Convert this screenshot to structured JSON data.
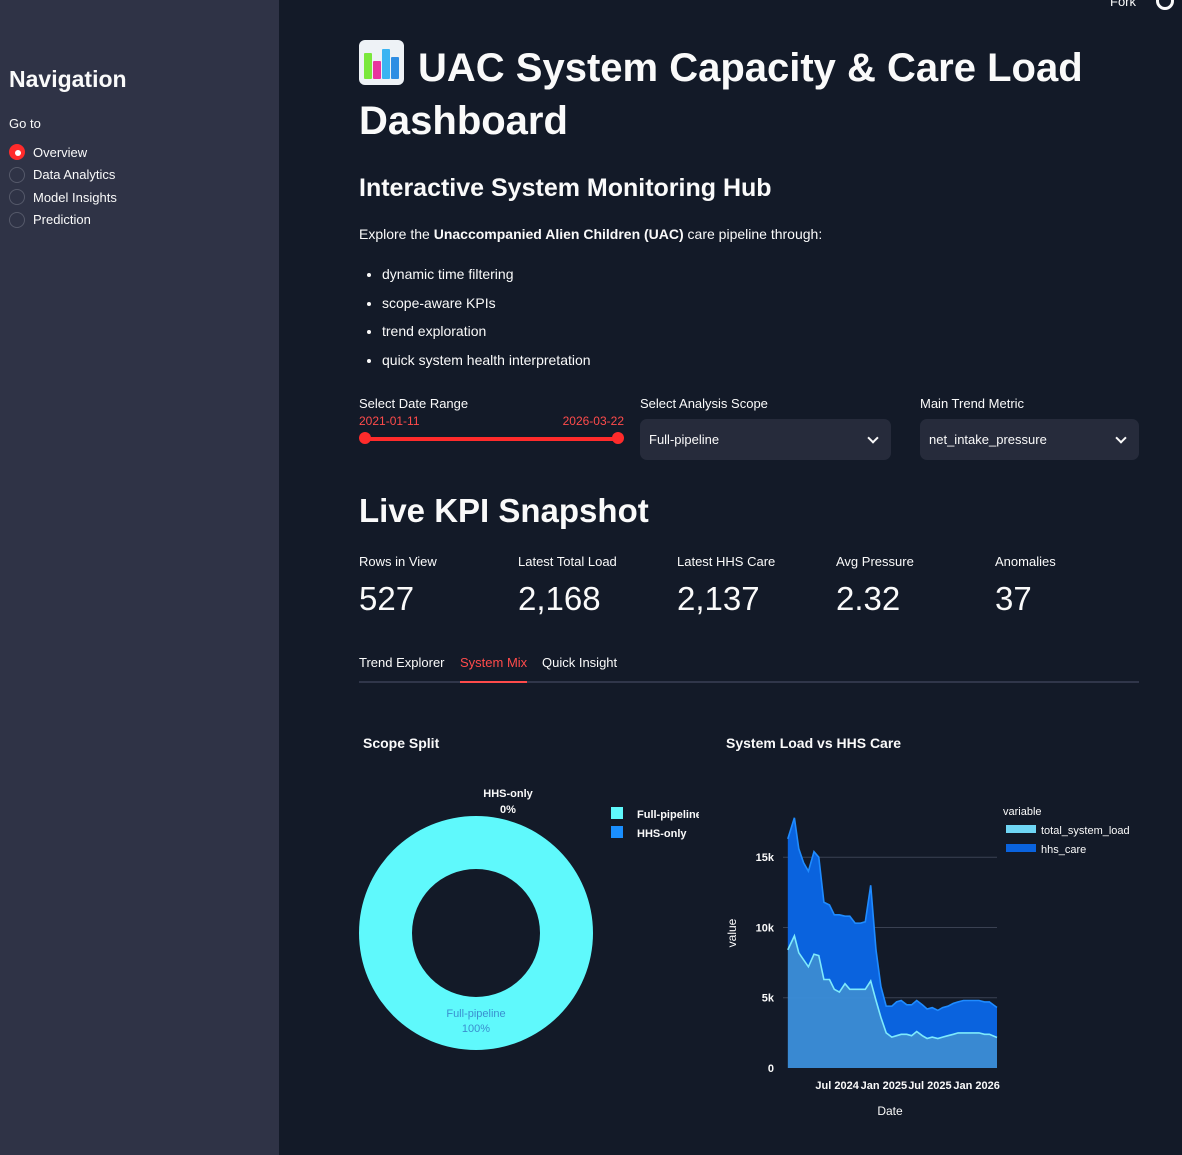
{
  "topbar": {
    "fork_label": "Fork"
  },
  "sidebar": {
    "title": "Navigation",
    "goto_label": "Go to",
    "items": [
      {
        "label": "Overview",
        "selected": true
      },
      {
        "label": "Data Analytics",
        "selected": false
      },
      {
        "label": "Model Insights",
        "selected": false
      },
      {
        "label": "Prediction",
        "selected": false
      }
    ]
  },
  "header": {
    "title": "UAC System Capacity & Care Load Dashboard",
    "subtitle": "Interactive System Monitoring Hub",
    "intro_prefix": "Explore the ",
    "intro_bold": "Unaccompanied Alien Children (UAC)",
    "intro_suffix": " care pipeline through:",
    "bullets": [
      "dynamic time filtering",
      "scope-aware KPIs",
      "trend exploration",
      "quick system health interpretation"
    ]
  },
  "controls": {
    "date_range": {
      "label": "Select Date Range",
      "start": "2021-01-11",
      "end": "2026-03-22"
    },
    "scope": {
      "label": "Select Analysis Scope",
      "value": "Full-pipeline"
    },
    "metric": {
      "label": "Main Trend Metric",
      "value": "net_intake_pressure"
    }
  },
  "kpi": {
    "title": "Live KPI Snapshot",
    "metrics": [
      {
        "label": "Rows in View",
        "value": "527"
      },
      {
        "label": "Latest Total Load",
        "value": "2,168"
      },
      {
        "label": "Latest HHS Care",
        "value": "2,137"
      },
      {
        "label": "Avg Pressure",
        "value": "2.32"
      },
      {
        "label": "Anomalies",
        "value": "37"
      }
    ]
  },
  "tabs": [
    {
      "label": "Trend Explorer",
      "active": false
    },
    {
      "label": "System Mix",
      "active": true
    },
    {
      "label": "Quick Insight",
      "active": false
    }
  ],
  "colors": {
    "accent": "#ff4b4b",
    "full_pipeline": "#5ff9fc",
    "hhs_only": "#1a8fff",
    "total_load": "#6fd6f5",
    "hhs_care": "#0a63de"
  },
  "chart_data": [
    {
      "type": "pie",
      "title": "Scope Split",
      "hole": true,
      "categories": [
        "Full-pipeline",
        "HHS-only"
      ],
      "values": [
        100,
        0
      ],
      "slice_labels": [
        {
          "name": "Full-pipeline",
          "pct": "100%"
        },
        {
          "name": "HHS-only",
          "pct": "0%"
        }
      ],
      "legend": [
        "Full-pipeline",
        "HHS-only"
      ],
      "legend_placement": "top-right"
    },
    {
      "type": "area",
      "title": "System Load vs HHS Care",
      "xlabel": "Date",
      "ylabel": "value",
      "x_ticks": [
        "Jul 2024",
        "Jan 2025",
        "Jul 2025",
        "Jan 2026"
      ],
      "y_ticks": [
        "0",
        "5k",
        "10k",
        "15k"
      ],
      "ylim": [
        0,
        18500
      ],
      "legend_title": "variable",
      "legend_placement": "top-right",
      "series": [
        {
          "name": "total_system_load",
          "x": [
            "2023-12-20",
            "2024-01-15",
            "2024-02-01",
            "2024-02-20",
            "2024-03-10",
            "2024-04-01",
            "2024-04-20",
            "2024-05-10",
            "2024-06-01",
            "2024-06-20",
            "2024-07-10",
            "2024-08-01",
            "2024-08-20",
            "2024-09-10",
            "2024-10-01",
            "2024-10-20",
            "2024-11-10",
            "2024-12-01",
            "2024-12-20",
            "2025-01-10",
            "2025-02-01",
            "2025-02-20",
            "2025-03-10",
            "2025-04-01",
            "2025-04-20",
            "2025-05-10",
            "2025-06-01",
            "2025-06-20",
            "2025-07-10",
            "2025-08-01",
            "2025-08-20",
            "2025-09-10",
            "2025-10-01",
            "2025-10-20",
            "2025-11-10",
            "2025-12-01",
            "2025-12-20",
            "2026-01-10",
            "2026-02-01",
            "2026-02-20",
            "2026-03-22"
          ],
          "values": [
            8400,
            9400,
            8200,
            7700,
            7200,
            8100,
            8000,
            6300,
            6300,
            5600,
            5400,
            6000,
            5600,
            5600,
            5600,
            5600,
            6200,
            4800,
            3600,
            2500,
            2200,
            2300,
            2400,
            2400,
            2300,
            2600,
            2300,
            2100,
            2200,
            2100,
            2200,
            2300,
            2400,
            2500,
            2500,
            2500,
            2500,
            2500,
            2400,
            2400,
            2168
          ]
        },
        {
          "name": "hhs_care",
          "x": [
            "2023-12-20",
            "2024-01-15",
            "2024-02-01",
            "2024-02-20",
            "2024-03-10",
            "2024-04-01",
            "2024-04-20",
            "2024-05-10",
            "2024-06-01",
            "2024-06-20",
            "2024-07-10",
            "2024-08-01",
            "2024-08-20",
            "2024-09-10",
            "2024-10-01",
            "2024-10-20",
            "2024-11-10",
            "2024-12-01",
            "2024-12-20",
            "2025-01-10",
            "2025-02-01",
            "2025-02-20",
            "2025-03-10",
            "2025-04-01",
            "2025-04-20",
            "2025-05-10",
            "2025-06-01",
            "2025-06-20",
            "2025-07-10",
            "2025-08-01",
            "2025-08-20",
            "2025-09-10",
            "2025-10-01",
            "2025-10-20",
            "2025-11-10",
            "2025-12-01",
            "2025-12-20",
            "2026-01-10",
            "2026-02-01",
            "2026-02-20",
            "2026-03-22"
          ],
          "values": [
            7900,
            8400,
            7400,
            6900,
            6800,
            7300,
            7000,
            5500,
            5300,
            5300,
            5500,
            4800,
            5200,
            4700,
            4700,
            4800,
            6800,
            3600,
            2200,
            1900,
            2200,
            2400,
            2400,
            2100,
            2200,
            2200,
            2200,
            2100,
            2100,
            2000,
            2100,
            2100,
            2200,
            2200,
            2300,
            2300,
            2300,
            2300,
            2300,
            2300,
            2137
          ]
        }
      ]
    }
  ]
}
